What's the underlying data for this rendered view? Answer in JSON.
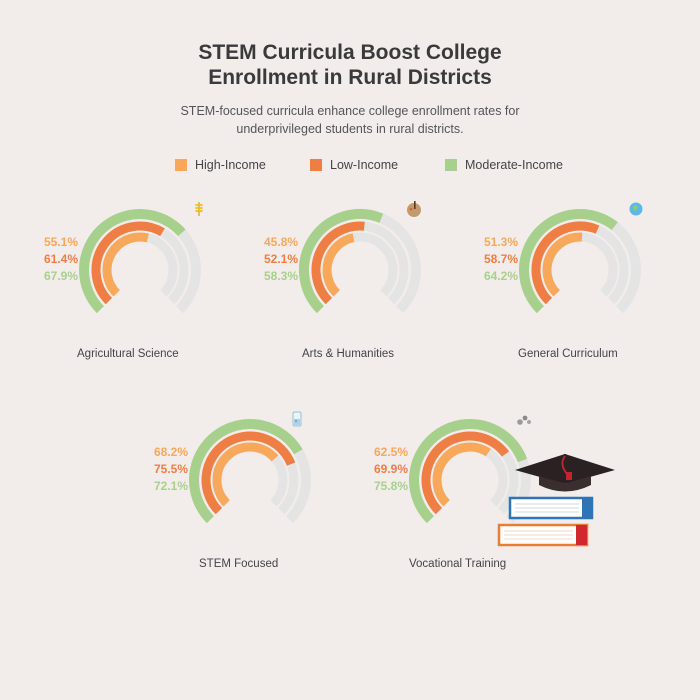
{
  "chart_data": {
    "type": "radial-bar",
    "title_lines": [
      "STEM Curricula Boost College",
      "Enrollment in Rural Districts"
    ],
    "subtitle": "STEM-focused curricula enhance college enrollment rates for underprivileged students in rural districts.",
    "legend_placement": "top-center",
    "series": [
      {
        "name": "High-Income",
        "color": "#f7a85b",
        "values": [
          55.1,
          45.8,
          51.3,
          68.2,
          62.5
        ]
      },
      {
        "name": "Low-Income",
        "color": "#ef7e45",
        "values": [
          61.4,
          52.1,
          58.7,
          75.5,
          69.9
        ]
      },
      {
        "name": "Moderate-Income",
        "color": "#a8d08d",
        "values": [
          67.9,
          58.3,
          64.2,
          72.1,
          75.8
        ]
      }
    ],
    "categories": [
      "Agricultural Science",
      "Arts & Humanities",
      "General Curriculum",
      "STEM Focused",
      "Vocational Training"
    ],
    "category_icons": [
      "wheat-icon",
      "palette-icon",
      "globe-icon",
      "beaker-icon",
      "gears-icon"
    ],
    "value_suffix": "%",
    "max_value": 100,
    "track_color": "#e4e4e4"
  },
  "decoration": {
    "icon": "graduation-cap-and-books-icon"
  }
}
